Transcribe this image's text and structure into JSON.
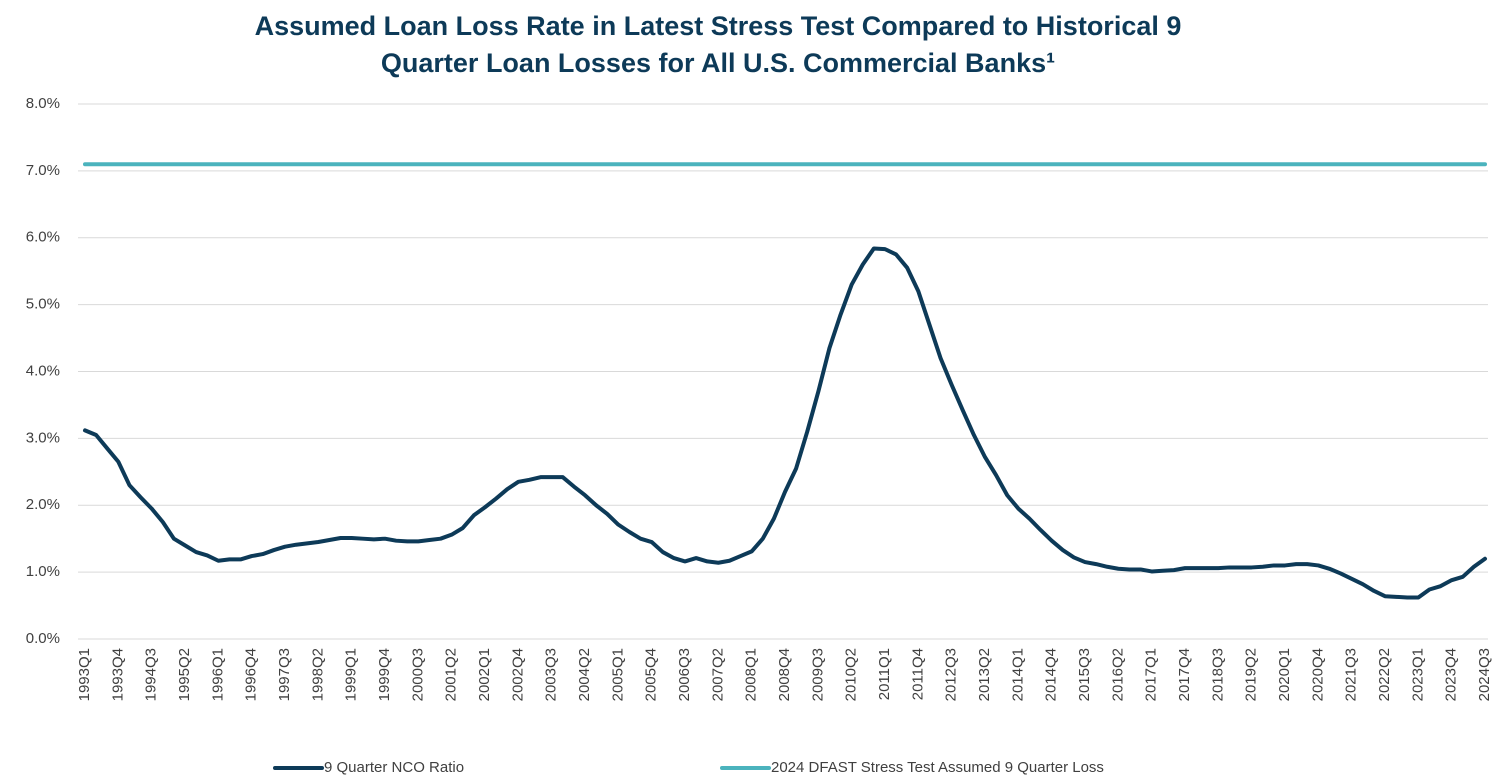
{
  "chart_data": {
    "type": "line",
    "title": [
      "Assumed Loan Loss Rate in Latest Stress Test Compared to Historical 9",
      "Quarter Loan Losses for All U.S. Commercial Banks¹"
    ],
    "categories": [
      "1993Q1",
      null,
      null,
      "1993Q4",
      null,
      null,
      "1994Q3",
      null,
      null,
      "1995Q2",
      null,
      null,
      "1996Q1",
      null,
      null,
      "1996Q4",
      null,
      null,
      "1997Q3",
      null,
      null,
      "1998Q2",
      null,
      null,
      "1999Q1",
      null,
      null,
      "1999Q4",
      null,
      null,
      "2000Q3",
      null,
      null,
      "2001Q2",
      null,
      null,
      "2002Q1",
      null,
      null,
      "2002Q4",
      null,
      null,
      "2003Q3",
      null,
      null,
      "2004Q2",
      null,
      null,
      "2005Q1",
      null,
      null,
      "2005Q4",
      null,
      null,
      "2006Q3",
      null,
      null,
      "2007Q2",
      null,
      null,
      "2008Q1",
      null,
      null,
      "2008Q4",
      null,
      null,
      "2009Q3",
      null,
      null,
      "2010Q2",
      null,
      null,
      "2011Q1",
      null,
      null,
      "2011Q4",
      null,
      null,
      "2012Q3",
      null,
      null,
      "2013Q2",
      null,
      null,
      "2014Q1",
      null,
      null,
      "2014Q4",
      null,
      null,
      "2015Q3",
      null,
      null,
      "2016Q2",
      null,
      null,
      "2017Q1",
      null,
      null,
      "2017Q4",
      null,
      null,
      "2018Q3",
      null,
      null,
      "2019Q2",
      null,
      null,
      "2020Q1",
      null,
      null,
      "2020Q4",
      null,
      null,
      "2021Q3",
      null,
      null,
      "2022Q2",
      null,
      null,
      "2023Q1",
      null,
      null,
      "2023Q4",
      null,
      null,
      "2024Q3"
    ],
    "series": [
      {
        "name": "9 Quarter NCO Ratio",
        "color": "#0d3a58",
        "values": [
          3.12,
          3.05,
          2.85,
          2.65,
          2.3,
          2.12,
          1.95,
          1.75,
          1.5,
          1.4,
          1.3,
          1.25,
          1.17,
          1.19,
          1.19,
          1.24,
          1.27,
          1.33,
          1.38,
          1.41,
          1.43,
          1.45,
          1.48,
          1.51,
          1.51,
          1.5,
          1.49,
          1.5,
          1.47,
          1.46,
          1.46,
          1.48,
          1.5,
          1.56,
          1.66,
          1.85,
          1.97,
          2.1,
          2.24,
          2.35,
          2.38,
          2.42,
          2.42,
          2.42,
          2.28,
          2.15,
          2,
          1.87,
          1.71,
          1.6,
          1.5,
          1.45,
          1.3,
          1.21,
          1.16,
          1.21,
          1.16,
          1.14,
          1.17,
          1.24,
          1.31,
          1.5,
          1.8,
          2.2,
          2.55,
          3.1,
          3.7,
          4.35,
          4.85,
          5.3,
          5.6,
          5.84,
          5.83,
          5.75,
          5.55,
          5.2,
          4.7,
          4.2,
          3.8,
          3.42,
          3.05,
          2.72,
          2.45,
          2.15,
          1.95,
          1.8,
          1.63,
          1.47,
          1.33,
          1.22,
          1.15,
          1.12,
          1.08,
          1.05,
          1.04,
          1.04,
          1.01,
          1.02,
          1.03,
          1.06,
          1.06,
          1.06,
          1.06,
          1.07,
          1.07,
          1.07,
          1.08,
          1.1,
          1.1,
          1.12,
          1.12,
          1.1,
          1.05,
          0.98,
          0.9,
          0.82,
          0.72,
          0.64,
          0.63,
          0.62,
          0.62,
          0.74,
          0.79,
          0.88,
          0.93,
          1.08,
          1.2
        ]
      },
      {
        "name": "2024 DFAST Stress Test Assumed 9 Quarter Loss",
        "color": "#4bb3bd",
        "values": [
          7.1,
          7.1,
          7.1,
          7.1,
          7.1,
          7.1,
          7.1,
          7.1,
          7.1,
          7.1,
          7.1,
          7.1,
          7.1,
          7.1,
          7.1,
          7.1,
          7.1,
          7.1,
          7.1,
          7.1,
          7.1,
          7.1,
          7.1,
          7.1,
          7.1,
          7.1,
          7.1,
          7.1,
          7.1,
          7.1,
          7.1,
          7.1,
          7.1,
          7.1,
          7.1,
          7.1,
          7.1,
          7.1,
          7.1,
          7.1,
          7.1,
          7.1,
          7.1,
          7.1,
          7.1,
          7.1,
          7.1,
          7.1,
          7.1,
          7.1,
          7.1,
          7.1,
          7.1,
          7.1,
          7.1,
          7.1,
          7.1,
          7.1,
          7.1,
          7.1,
          7.1,
          7.1,
          7.1,
          7.1,
          7.1,
          7.1,
          7.1,
          7.1,
          7.1,
          7.1,
          7.1,
          7.1,
          7.1,
          7.1,
          7.1,
          7.1,
          7.1,
          7.1,
          7.1,
          7.1,
          7.1,
          7.1,
          7.1,
          7.1,
          7.1,
          7.1,
          7.1,
          7.1,
          7.1,
          7.1,
          7.1,
          7.1,
          7.1,
          7.1,
          7.1,
          7.1,
          7.1,
          7.1,
          7.1,
          7.1,
          7.1,
          7.1,
          7.1,
          7.1,
          7.1,
          7.1,
          7.1,
          7.1,
          7.1,
          7.1,
          7.1,
          7.1,
          7.1,
          7.1,
          7.1,
          7.1,
          7.1,
          7.1,
          7.1,
          7.1,
          7.1,
          7.1,
          7.1,
          7.1,
          7.1,
          7.1,
          7.1
        ]
      }
    ],
    "ylim": [
      0,
      8
    ],
    "yticks": [
      {
        "value": 0,
        "label": "0.0%"
      },
      {
        "value": 1,
        "label": "1.0%"
      },
      {
        "value": 2,
        "label": "2.0%"
      },
      {
        "value": 3,
        "label": "3.0%"
      },
      {
        "value": 4,
        "label": "4.0%"
      },
      {
        "value": 5,
        "label": "5.0%"
      },
      {
        "value": 6,
        "label": "6.0%"
      },
      {
        "value": 7,
        "label": "7.0%"
      },
      {
        "value": 8,
        "label": "8.0%"
      }
    ],
    "grid": true,
    "legend": "bottom"
  }
}
